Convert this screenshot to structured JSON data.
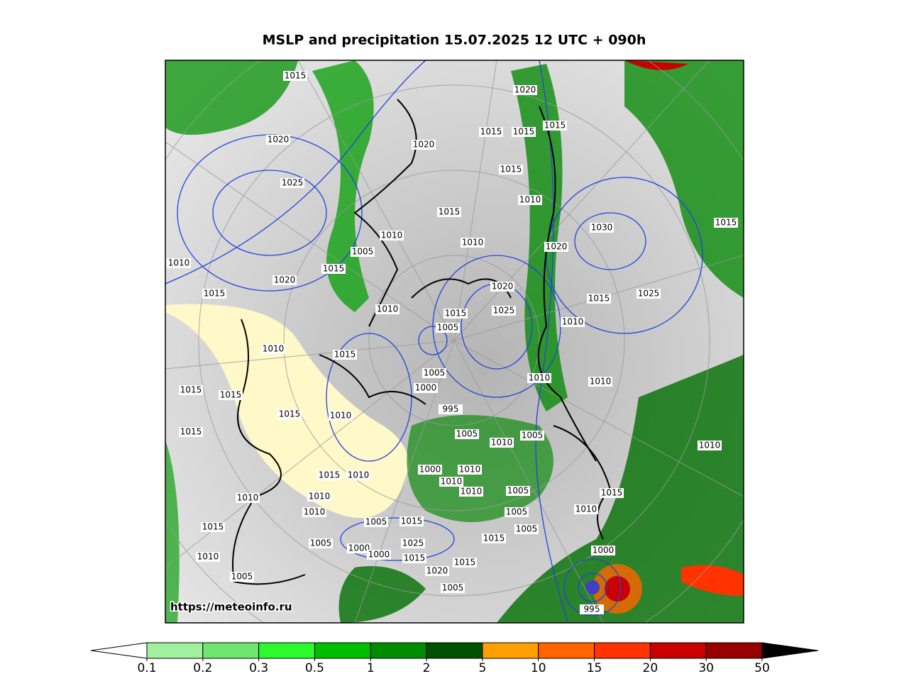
{
  "title": "MSLP and precipitation 15.07.2025 12 UTC + 090h",
  "watermark": "https://meteoinfo.ru",
  "colorbar": {
    "ticks": [
      0.1,
      0.2,
      0.3,
      0.5,
      1,
      2,
      5,
      10,
      15,
      20,
      30,
      50
    ],
    "colors": [
      "#a0f0a0",
      "#6ee66e",
      "#2dfa2d",
      "#00be00",
      "#008c00",
      "#005000",
      "#ffa000",
      "#ff6400",
      "#ff3200",
      "#c80000",
      "#960000"
    ]
  },
  "isobar_labels": [
    1015,
    1020,
    1015,
    1015,
    1015,
    1020,
    1020,
    1015,
    1025,
    1010,
    1015,
    1030,
    1015,
    1010,
    1010,
    1005,
    1020,
    1010,
    1015,
    1020,
    1020,
    1015,
    1025,
    1015,
    1025,
    1015,
    1010,
    1005,
    1010,
    1010,
    1015,
    1005,
    1010,
    1010,
    1015,
    1015,
    1000,
    995,
    1015,
    1010,
    1015,
    1005,
    1005,
    1010,
    1010,
    1000,
    1010,
    1010,
    1015,
    1010,
    1010,
    1005,
    1015,
    1010,
    1010,
    1010,
    1005,
    1010,
    1015,
    1005,
    1015,
    1005,
    1015,
    1005,
    1000,
    1000,
    1025,
    1015,
    1000,
    1010,
    1020,
    1015,
    1005,
    1005,
    995
  ]
}
